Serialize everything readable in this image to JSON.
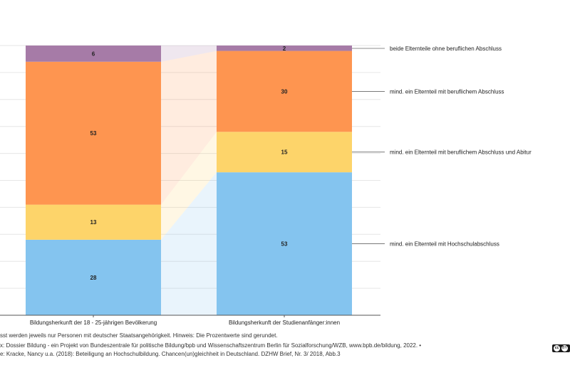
{
  "chart_data": {
    "type": "bar",
    "stacked": true,
    "categories": [
      "Bildungsherkunft der 18 - 25-jährigen Bevölkerung",
      "Bildungsherkunft der Studienanfänger:innen"
    ],
    "series": [
      {
        "name": "mind. ein Elternteil mit Hochschulabschluss",
        "values": [
          28,
          53
        ],
        "color": "#84c4ef"
      },
      {
        "name": "mind. ein Elternteil mit beruflichem Abschluss und Abitur",
        "values": [
          13,
          15
        ],
        "color": "#fdd46a"
      },
      {
        "name": "mind. ein Elternteil mit beruflichem Abschluss",
        "values": [
          53,
          30
        ],
        "color": "#fe9550"
      },
      {
        "name": "beide Elternteile ohne beruflichen Abschluss",
        "values": [
          6,
          2
        ],
        "color": "#a67ba7"
      }
    ],
    "ylim": [
      0,
      100
    ],
    "grid": true,
    "legend": "right, labels next to second bar"
  },
  "footer": {
    "note": "sst werden jeweils nur Personen mit deutscher Staatsangehörigkeit. Hinweis: Die Prozentwerte sind gerundet.",
    "source": "x: Dossier Bildung - ein Projekt von Bundeszentrale für politische Bildung/bpb und Wissenschaftszentrum Berlin für Sozialforschung/WZB, www.bpb.de/bildung, 2022. •",
    "reference": "e: Kracke, Nancy u.a. (2018): Beteiligung an Hochschulbildung. Chancen(un)gleichheit in Deutschland. DZHW Brief, Nr. 3/ 2018, Abb.3"
  },
  "license": {
    "cc": "cc",
    "by": "BY"
  }
}
